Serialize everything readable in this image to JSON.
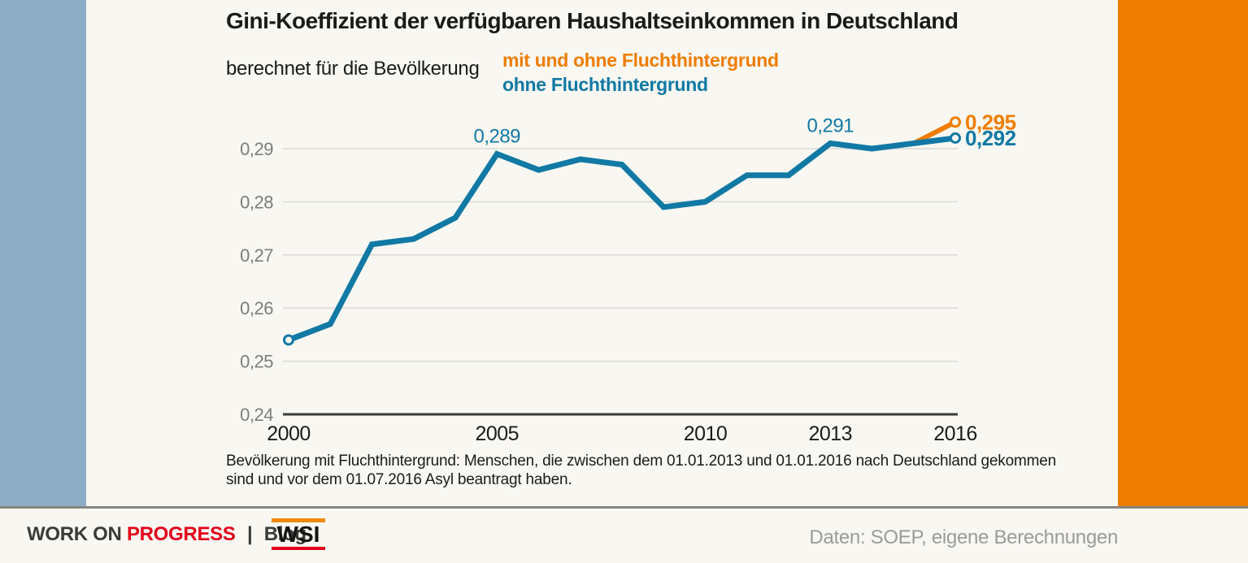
{
  "page": {
    "background": "#f8f7f2",
    "left_bar_color": "#8dadc6",
    "right_bar_color": "#ef7d00",
    "footer_rule_color": "#85857f"
  },
  "header": {
    "title": "Gini-Koeffizient der verfügbaren Haushaltseinkommen in Deutschland",
    "subtitle": "berechnet für die Bevölkerung",
    "legend": [
      {
        "label": "mit und ohne Fluchthintergrund",
        "color": "#ef7d00"
      },
      {
        "label": "ohne Fluchthintergrund",
        "color": "#1179a4"
      }
    ]
  },
  "chart_data": {
    "type": "line",
    "title": "Gini-Koeffizient der verfügbaren Haushaltseinkommen in Deutschland",
    "subtitle": "berechnet für die Bevölkerung",
    "xlabel": "",
    "ylabel": "",
    "xlim": [
      2000,
      2016
    ],
    "ylim": [
      0.24,
      0.297
    ],
    "grid": true,
    "legend_position": "top",
    "series": [
      {
        "name": "mit und ohne Fluchthintergrund",
        "color": "#ef7d00",
        "line_width": 6,
        "years": [
          2015,
          2016
        ],
        "values": [
          0.291,
          0.295
        ],
        "marker_years": [
          2016
        ]
      },
      {
        "name": "ohne Fluchthintergrund",
        "color": "#1179a4",
        "line_width": 7,
        "years": [
          2000,
          2001,
          2002,
          2003,
          2004,
          2005,
          2006,
          2007,
          2008,
          2009,
          2010,
          2011,
          2012,
          2013,
          2014,
          2015,
          2016
        ],
        "values": [
          0.254,
          0.257,
          0.272,
          0.273,
          0.277,
          0.289,
          0.286,
          0.288,
          0.287,
          0.279,
          0.28,
          0.285,
          0.285,
          0.291,
          0.29,
          0.291,
          0.292
        ],
        "marker_years": [
          2000,
          2016
        ]
      }
    ],
    "annotations": [
      {
        "text": "0,289",
        "year": 2005,
        "value": 0.289,
        "placement": "above",
        "color": "#1179a4",
        "bold": false
      },
      {
        "text": "0,291",
        "year": 2013,
        "value": 0.291,
        "placement": "above",
        "color": "#1179a4",
        "bold": false
      },
      {
        "text": "0,295",
        "year": 2016,
        "value": 0.295,
        "placement": "right",
        "color": "#ef7d00",
        "bold": true
      },
      {
        "text": "0,292",
        "year": 2016,
        "value": 0.292,
        "placement": "right",
        "color": "#1179a4",
        "bold": true
      }
    ],
    "y_ticks": [
      {
        "label": "0,29",
        "value": 0.29
      },
      {
        "label": "0,28",
        "value": 0.28
      },
      {
        "label": "0,27",
        "value": 0.27
      },
      {
        "label": "0,26",
        "value": 0.26
      },
      {
        "label": "0,25",
        "value": 0.25
      },
      {
        "label": "0,24",
        "value": 0.24,
        "axis": true
      }
    ],
    "x_ticks": [
      {
        "label": "2000",
        "value": 2000
      },
      {
        "label": "2005",
        "value": 2005
      },
      {
        "label": "2010",
        "value": 2010
      },
      {
        "label": "2013",
        "value": 2013
      },
      {
        "label": "2016",
        "value": 2016
      }
    ],
    "gridline_color": "#dcdad4",
    "axis_color": "#3b3b39"
  },
  "footnote": {
    "lines": [
      "Bevölkerung mit Fluchthintergrund: Menschen, die zwischen dem 01.01.2013 und 01.01.2016 nach Deutschland gekommen",
      "sind und vor dem 01.07.2016 Asyl beantragt haben."
    ]
  },
  "footer": {
    "brand_part1": "WORK ON",
    "brand_part2": "PROGRESS",
    "divider": "|",
    "blog_label": "Blog",
    "logo_text": "WSI",
    "source": "Daten: SOEP, eigene Berechnungen",
    "brand_red": "#e3001b",
    "logo_top_bar": "#f08a00",
    "logo_bottom_bar": "#e3001b"
  }
}
